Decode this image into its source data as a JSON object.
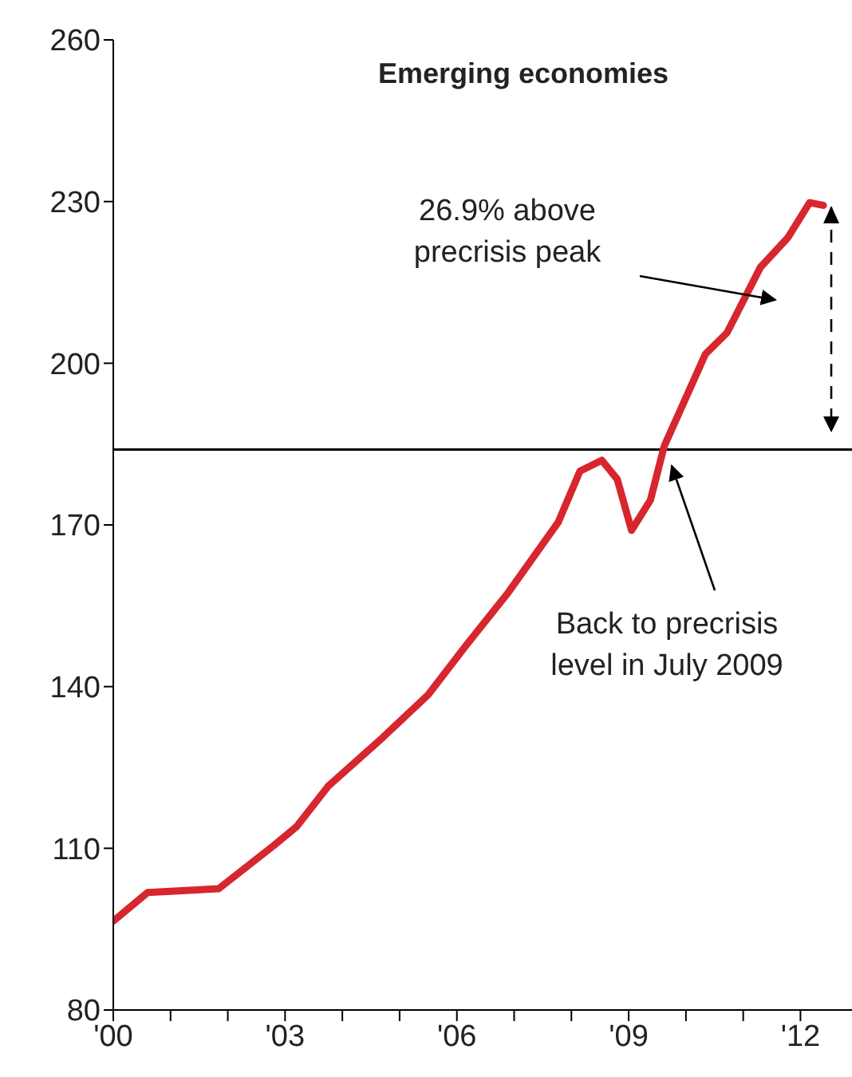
{
  "chart_data": {
    "type": "line",
    "title": "Emerging economies",
    "x": [
      2000.0,
      2000.6,
      2001.84,
      2002.2,
      2002.8,
      2003.2,
      2003.75,
      2004.7,
      2005.5,
      2006.15,
      2006.9,
      2007.77,
      2008.15,
      2008.53,
      2008.8,
      2009.05,
      2009.38,
      2009.62,
      2010.34,
      2010.72,
      2011.3,
      2011.78,
      2012.16,
      2012.4
    ],
    "series": [
      {
        "color": "#d7262e",
        "values": [
          96.5,
          101.8,
          102.5,
          105.5,
          110.5,
          114,
          121.5,
          130.5,
          138.5,
          147.5,
          157.5,
          170.5,
          180,
          182,
          178.5,
          169,
          174.6,
          184.6,
          201.7,
          205.7,
          217.8,
          223.3,
          229.8,
          229.3
        ]
      }
    ],
    "xlim": [
      2000,
      2012.9
    ],
    "xticks": [
      {
        "value": 2000,
        "label": "'00"
      },
      {
        "value": 2001,
        "label": null
      },
      {
        "value": 2002,
        "label": null
      },
      {
        "value": 2003,
        "label": "'03"
      },
      {
        "value": 2004,
        "label": null
      },
      {
        "value": 2005,
        "label": null
      },
      {
        "value": 2006,
        "label": "'06"
      },
      {
        "value": 2007,
        "label": null
      },
      {
        "value": 2008,
        "label": null
      },
      {
        "value": 2009,
        "label": "'09"
      },
      {
        "value": 2010,
        "label": null
      },
      {
        "value": 2011,
        "label": null
      },
      {
        "value": 2012,
        "label": "'12"
      }
    ],
    "ylim": [
      80,
      260
    ],
    "yticks": [
      80,
      110,
      140,
      170,
      200,
      230,
      260
    ],
    "ref_lines": [
      {
        "axis": "y",
        "value": 184,
        "color": "#000000"
      }
    ],
    "annotations": [
      "26.9% above precrisis peak",
      "Back to precrisis level in July 2009"
    ],
    "grid": false,
    "marker": "none",
    "line_style": "solid"
  }
}
